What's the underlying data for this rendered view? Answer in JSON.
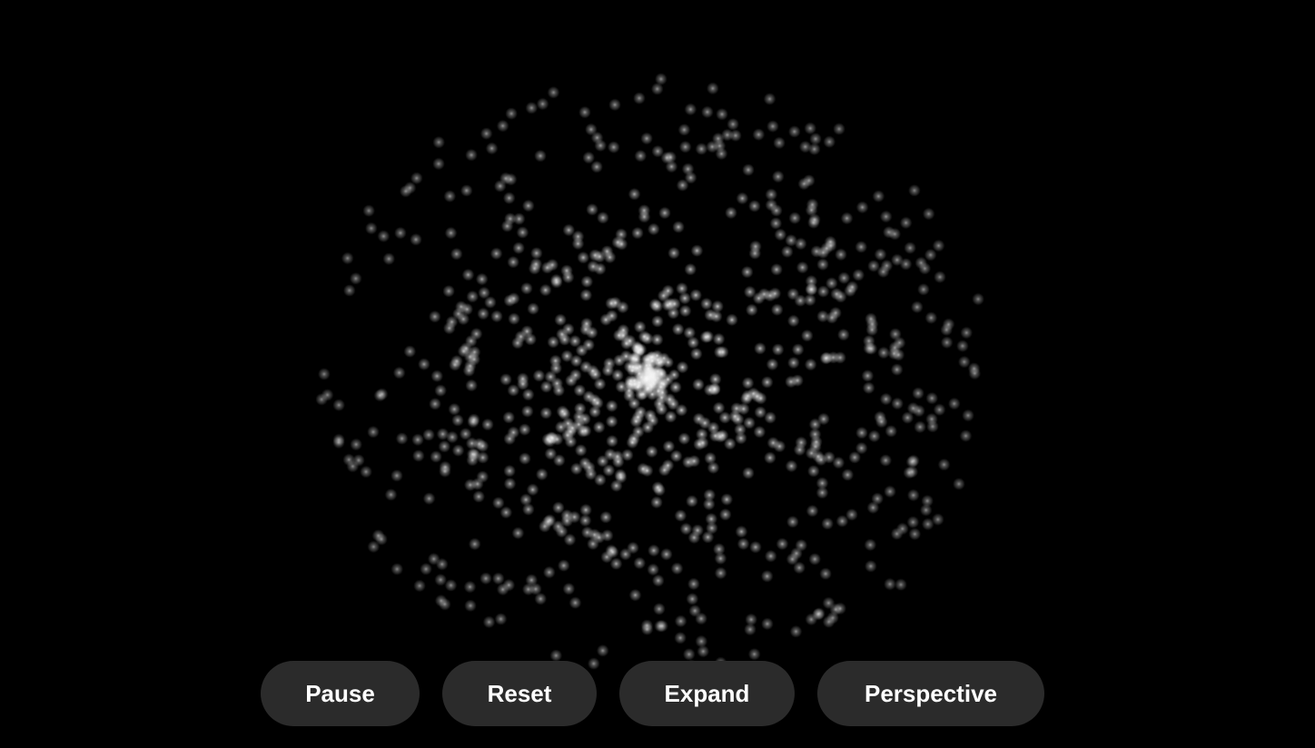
{
  "controls": {
    "pause_label": "Pause",
    "reset_label": "Reset",
    "expand_label": "Expand",
    "perspective_label": "Perspective"
  },
  "colors": {
    "background": "#000000",
    "particle": "#ffffff",
    "button_bg": "#2b2b2b",
    "button_text": "#ffffff"
  }
}
